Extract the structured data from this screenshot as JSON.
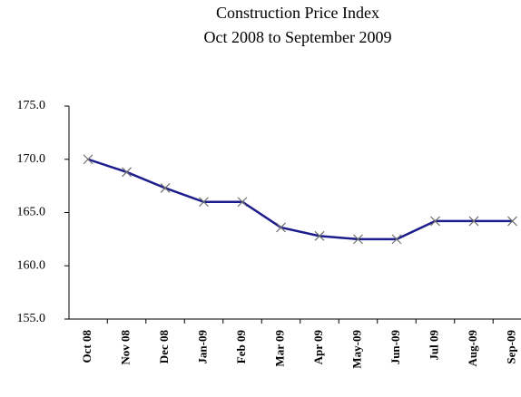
{
  "chart_data": {
    "type": "line",
    "title": [
      "Construction Price Index",
      "Oct 2008 to September 2009"
    ],
    "categories": [
      "Oct 08",
      "Nov 08",
      "Dec 08",
      "Jan-09",
      "Feb 09",
      "Mar 09",
      "Apr 09",
      "May-09",
      "Jun-09",
      "Jul 09",
      "Aug-09",
      "Sep-09"
    ],
    "values": [
      170.0,
      168.8,
      167.3,
      166.0,
      166.0,
      163.6,
      162.8,
      162.5,
      162.5,
      164.2,
      164.2,
      164.2
    ],
    "color": "#1c1c8c",
    "marker_color": "#6e6e6e",
    "ylim": [
      155,
      175
    ],
    "yticks": [
      {
        "value": 155,
        "label": "155.0"
      },
      {
        "value": 160,
        "label": "160.0"
      },
      {
        "value": 165,
        "label": "165.0"
      },
      {
        "value": 170,
        "label": "170.0"
      },
      {
        "value": 175,
        "label": "175.0"
      }
    ]
  }
}
